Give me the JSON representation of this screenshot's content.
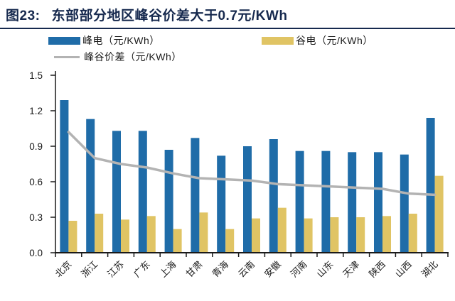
{
  "header": {
    "figure_label": "图23:",
    "title": "东部部分地区峰谷价差大于0.7元/KWh"
  },
  "colors": {
    "title_navy": "#16294E",
    "axis": "#1A1A1A",
    "peak_blue": "#1F6CA8",
    "valley_yellow": "#E0C464",
    "diff_gray": "#B3B3B3",
    "background": "#FFFFFF"
  },
  "chart_data": {
    "type": "bar",
    "title": "图23: 东部部分地区峰谷价差大于0.7元/KWh",
    "categories": [
      "北京",
      "浙江",
      "江苏",
      "广东",
      "上海",
      "甘肃",
      "青海",
      "云南",
      "安徽",
      "河南",
      "山东",
      "天津",
      "陕西",
      "山西",
      "湖北"
    ],
    "series": [
      {
        "name": "峰电（元/KWh）",
        "type": "bar",
        "color": "#1F6CA8",
        "values": [
          1.29,
          1.13,
          1.03,
          1.03,
          0.87,
          0.97,
          0.82,
          0.9,
          0.96,
          0.86,
          0.86,
          0.85,
          0.85,
          0.83,
          1.14
        ]
      },
      {
        "name": "谷电（元/KWh）",
        "type": "bar",
        "color": "#E0C464",
        "values": [
          0.27,
          0.33,
          0.28,
          0.31,
          0.2,
          0.34,
          0.2,
          0.29,
          0.38,
          0.29,
          0.3,
          0.3,
          0.31,
          0.33,
          0.65
        ]
      },
      {
        "name": "峰谷价差（元/KWh）",
        "type": "line",
        "color": "#B3B3B3",
        "values": [
          1.02,
          0.8,
          0.75,
          0.72,
          0.67,
          0.63,
          0.62,
          0.61,
          0.58,
          0.57,
          0.56,
          0.55,
          0.54,
          0.5,
          0.49
        ]
      }
    ],
    "xlabel": "",
    "ylabel": "",
    "ylim": [
      0,
      1.5
    ],
    "yticks": [
      0.0,
      0.3,
      0.6,
      0.9,
      1.2,
      1.5
    ],
    "ytick_labels": [
      "0.0",
      "0.3",
      "0.6",
      "0.9",
      "1.2",
      "1.5"
    ],
    "grid": false,
    "legend_position": "top",
    "x_label_rotation": 45
  }
}
